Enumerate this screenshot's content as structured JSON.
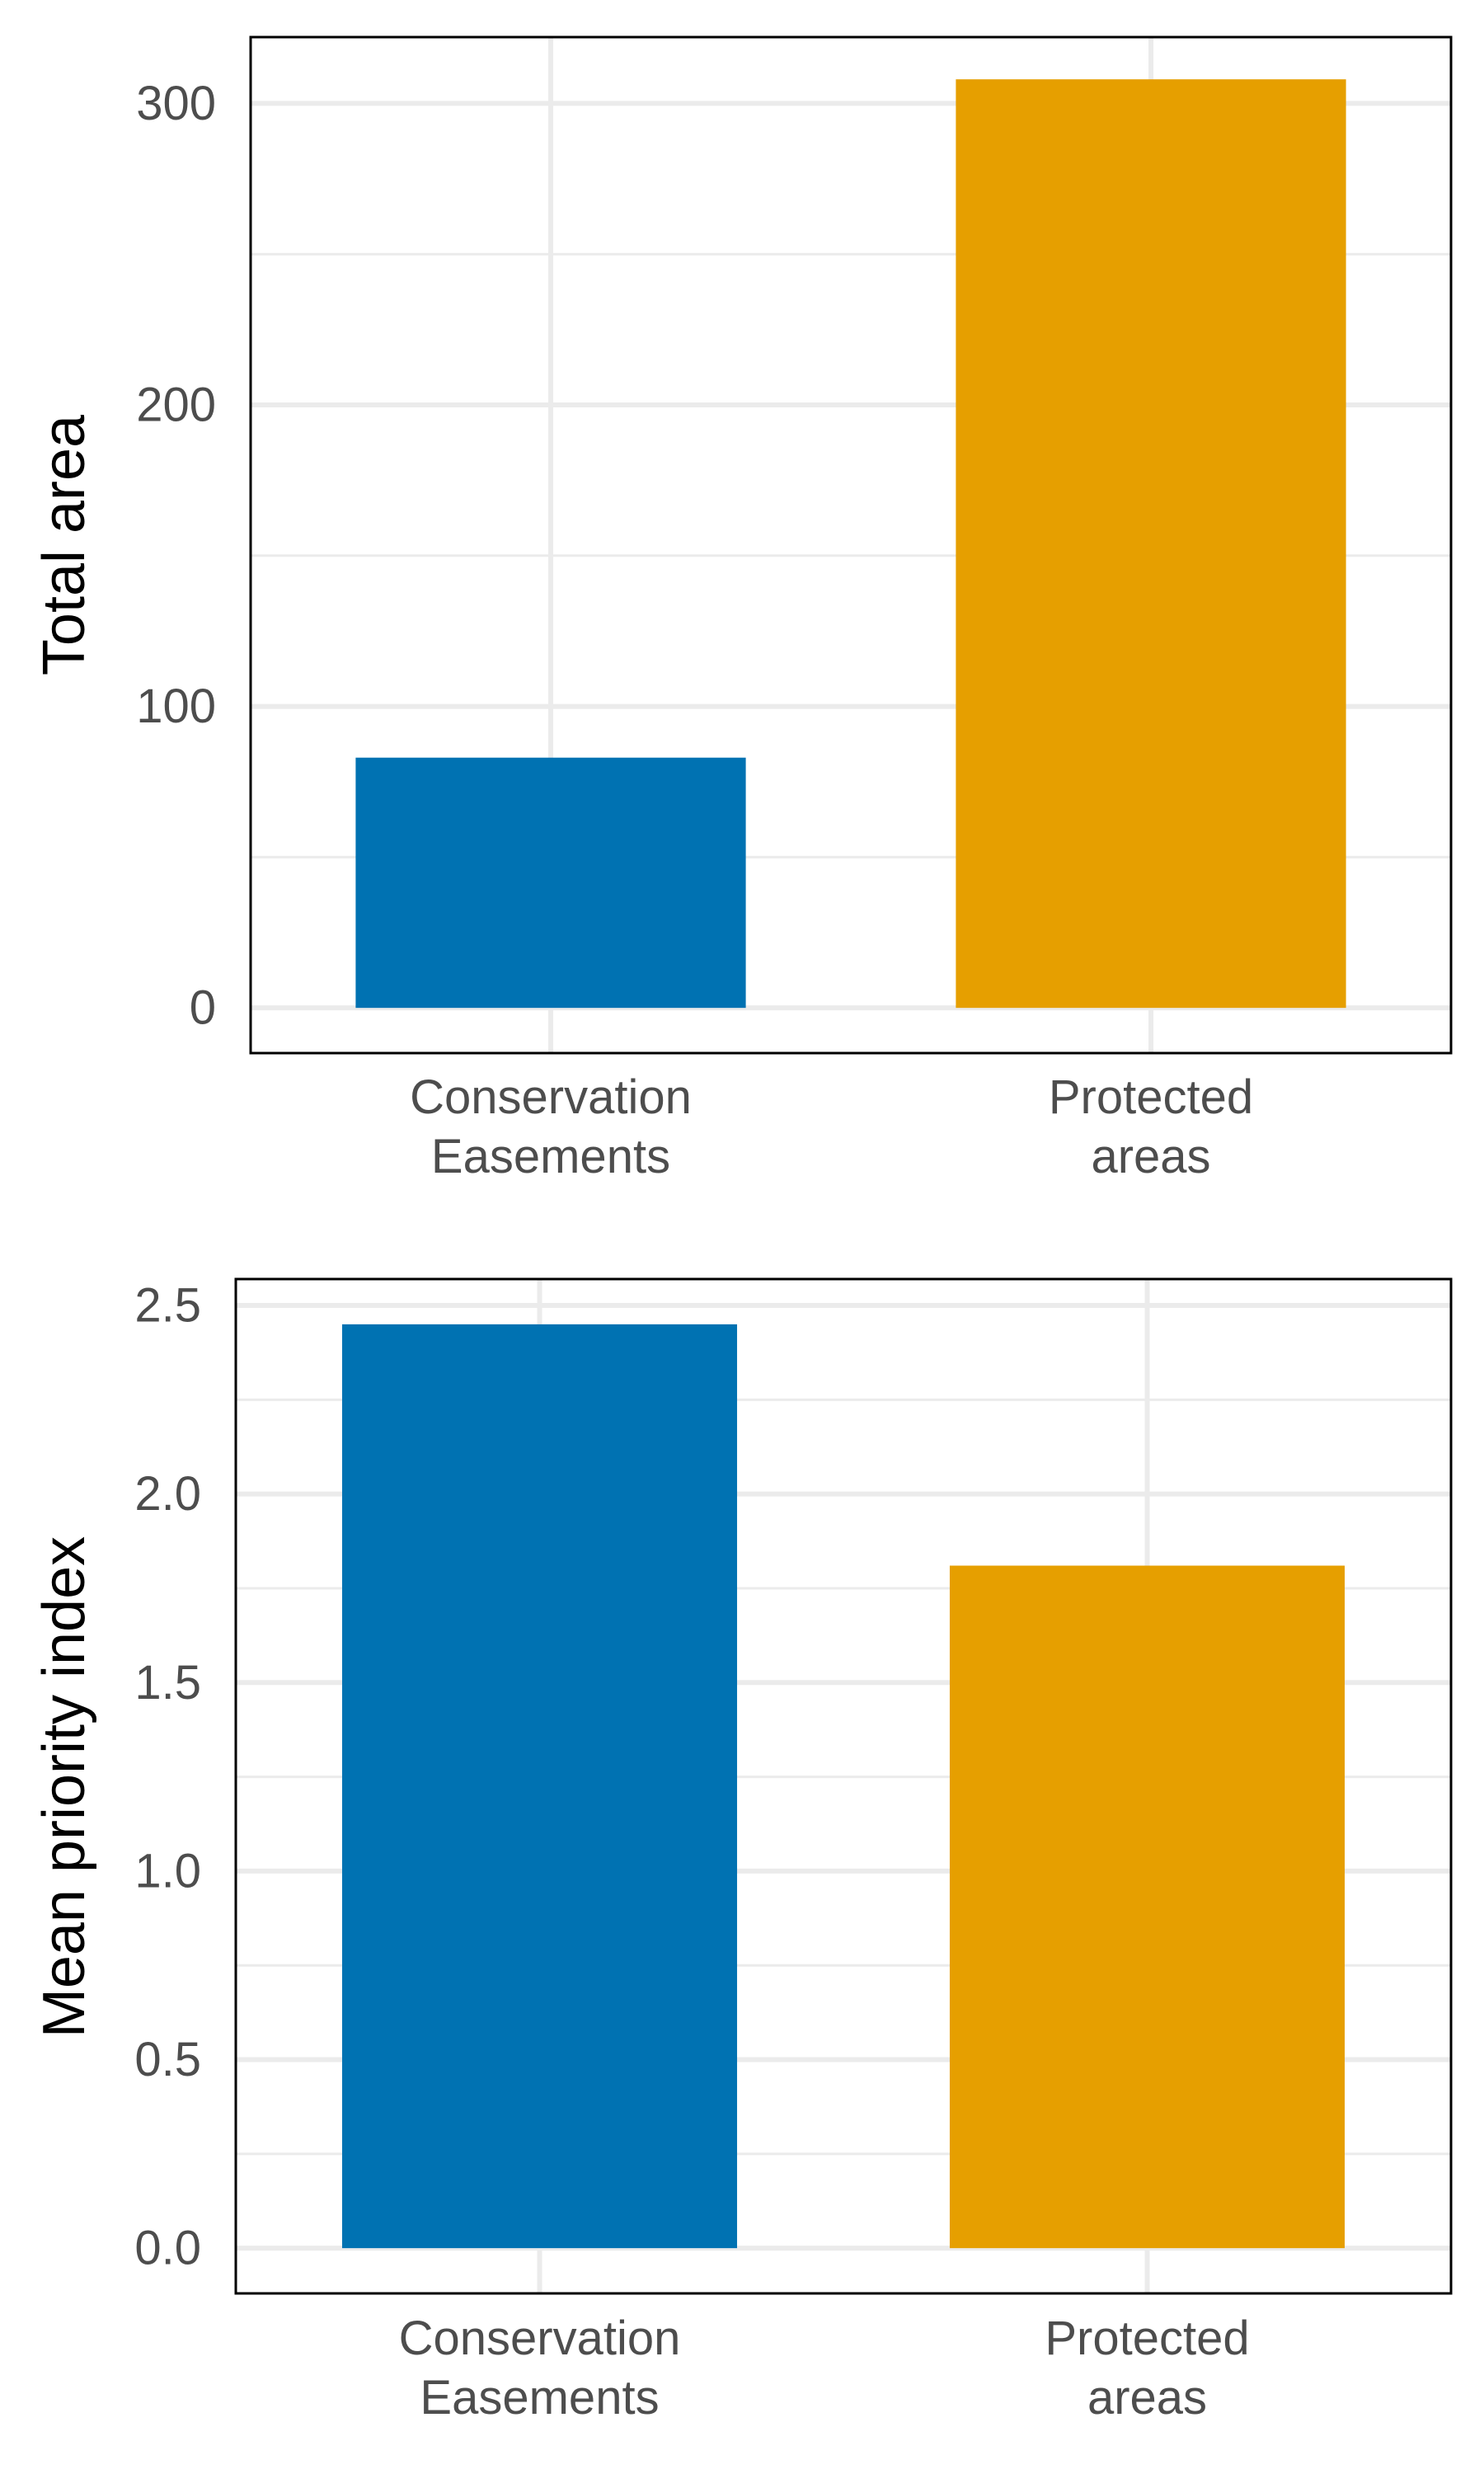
{
  "chart_data": [
    {
      "type": "bar",
      "categories": [
        [
          "Conservation",
          "Easements"
        ],
        [
          "Protected",
          "areas"
        ]
      ],
      "values": [
        83,
        308
      ],
      "colors": [
        "#0072b2",
        "#e69f00"
      ],
      "title": "",
      "xlabel": "",
      "ylabel": "Total area",
      "ylim": [
        -15,
        322
      ],
      "yticks": [
        0,
        100,
        200,
        300
      ],
      "ytick_labels": [
        "0",
        "100",
        "200",
        "300"
      ],
      "minor_yticks": [
        50,
        150,
        250
      ],
      "grid": true,
      "legend": "none"
    },
    {
      "type": "bar",
      "categories": [
        [
          "Conservation",
          "Easements"
        ],
        [
          "Protected",
          "areas"
        ]
      ],
      "values": [
        2.45,
        1.81
      ],
      "colors": [
        "#0072b2",
        "#e69f00"
      ],
      "title": "",
      "xlabel": "",
      "ylabel": "Mean priority index",
      "ylim": [
        -0.12,
        2.57
      ],
      "yticks": [
        0,
        0.5,
        1,
        1.5,
        2,
        2.5
      ],
      "ytick_labels": [
        "0.0",
        "0.5",
        "1.0",
        "1.5",
        "2.0",
        "2.5"
      ],
      "minor_yticks": [
        0.25,
        0.75,
        1.25,
        1.75,
        2.25
      ],
      "grid": true,
      "legend": "none"
    }
  ]
}
